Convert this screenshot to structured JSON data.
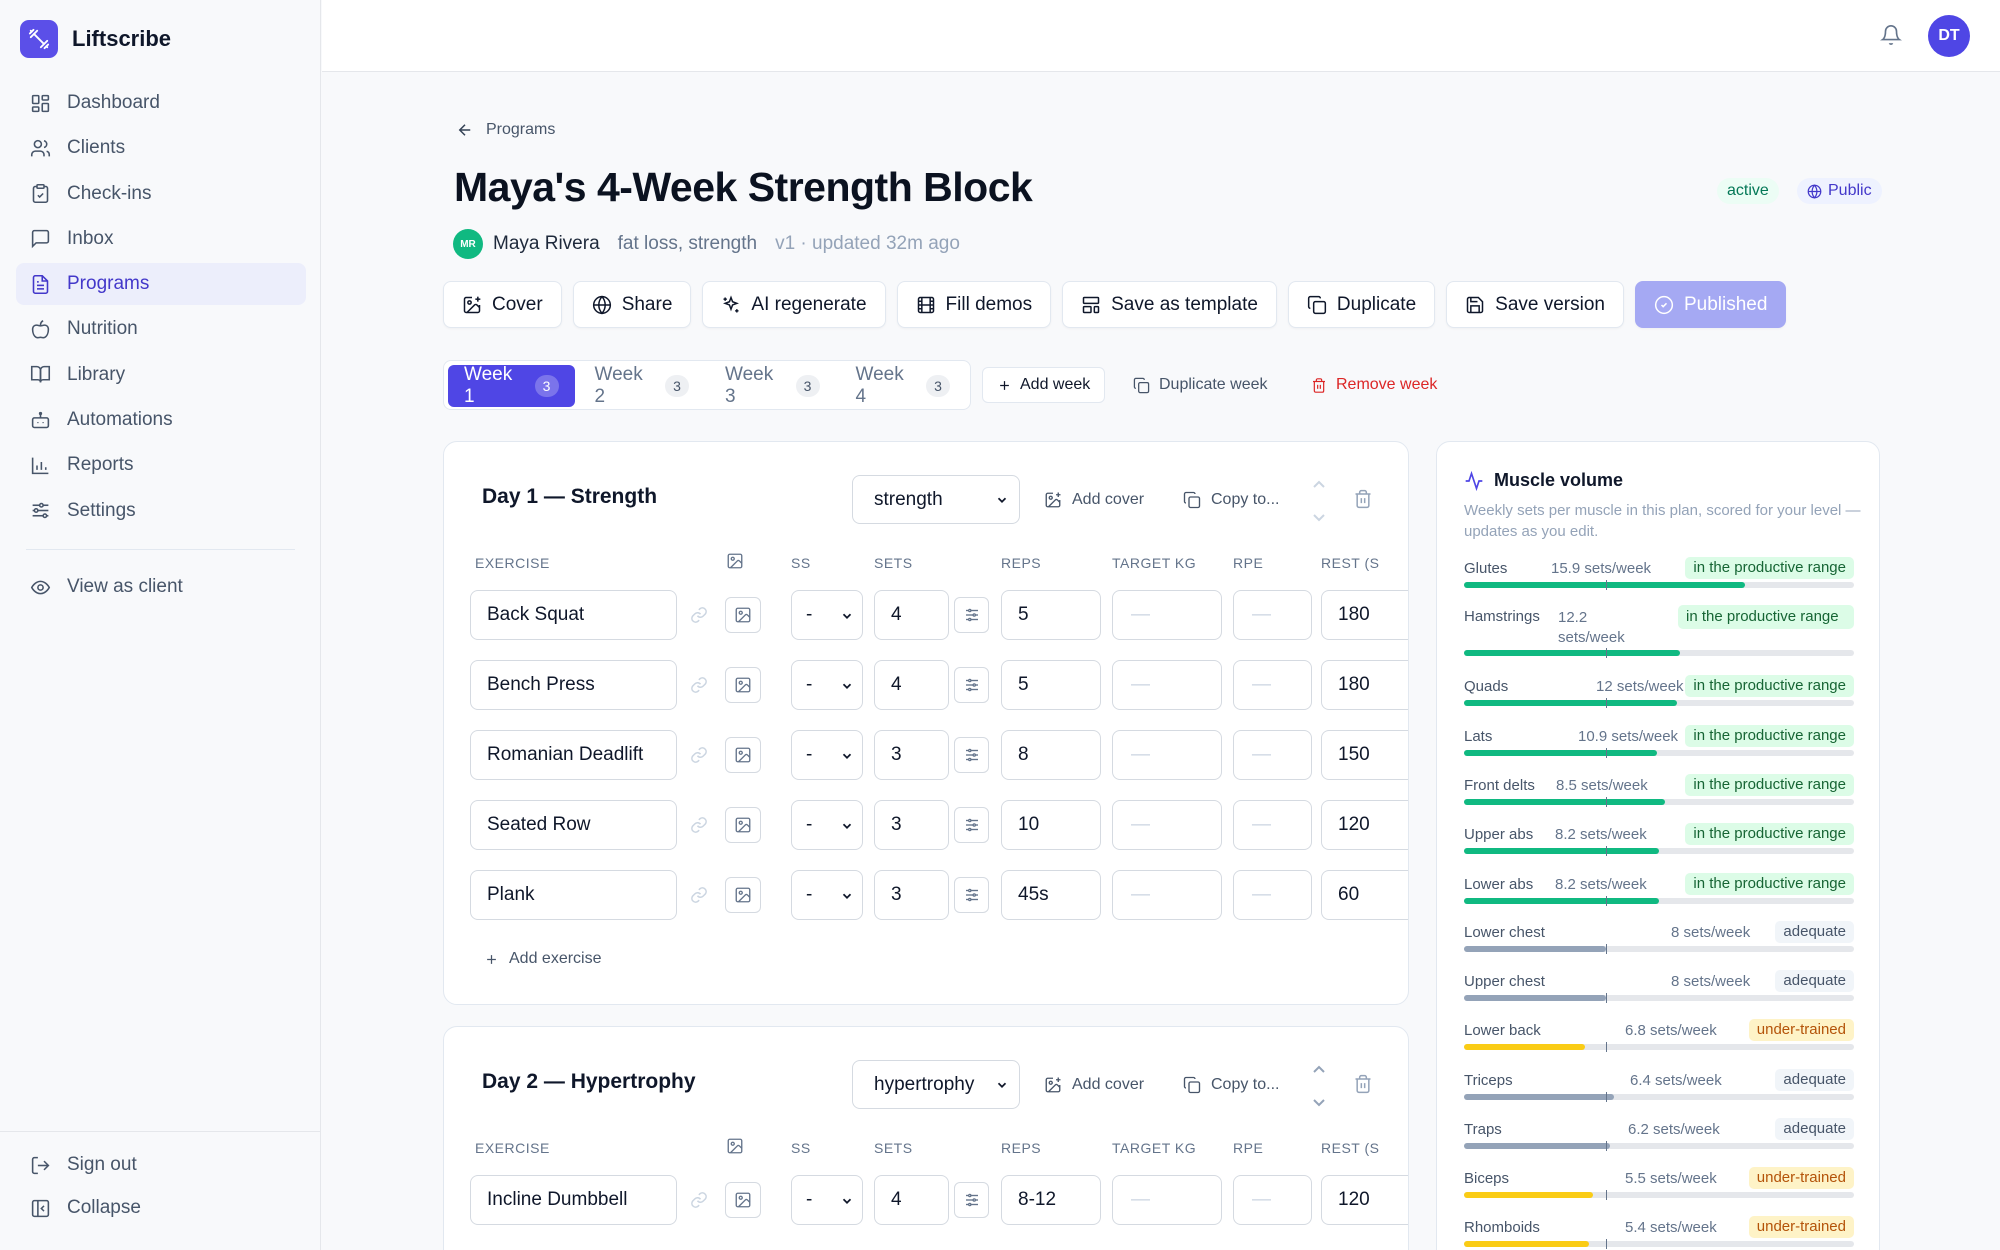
{
  "app": {
    "name": "Liftscribe",
    "user_initials": "DT"
  },
  "sidebar": {
    "items": [
      {
        "label": "Dashboard",
        "icon": "grid-icon"
      },
      {
        "label": "Clients",
        "icon": "users-icon"
      },
      {
        "label": "Check-ins",
        "icon": "clipboard-check-icon"
      },
      {
        "label": "Inbox",
        "icon": "message-icon"
      },
      {
        "label": "Programs",
        "icon": "file-text-icon",
        "active": true
      },
      {
        "label": "Nutrition",
        "icon": "apple-icon"
      },
      {
        "label": "Library",
        "icon": "book-icon"
      },
      {
        "label": "Automations",
        "icon": "bot-icon"
      },
      {
        "label": "Reports",
        "icon": "bar-chart-icon"
      },
      {
        "label": "Settings",
        "icon": "sliders-icon"
      }
    ],
    "view_as_client": "View as client",
    "sign_out": "Sign out",
    "collapse": "Collapse"
  },
  "breadcrumb": "Programs",
  "program": {
    "title": "Maya's 4-Week Strength Block",
    "owner_initials": "MR",
    "owner": "Maya Rivera",
    "tags": "fat loss, strength",
    "version": "v1 · updated 32m ago",
    "status": "active",
    "visibility": "Public"
  },
  "toolbar": {
    "cover": "Cover",
    "share": "Share",
    "ai_regenerate": "AI regenerate",
    "fill_demos": "Fill demos",
    "save_template": "Save as template",
    "duplicate": "Duplicate",
    "save_version": "Save version",
    "published": "Published"
  },
  "weeks": {
    "tabs": [
      {
        "label": "Week 1",
        "count": "3"
      },
      {
        "label": "Week 2",
        "count": "3"
      },
      {
        "label": "Week 3",
        "count": "3"
      },
      {
        "label": "Week 4",
        "count": "3"
      }
    ],
    "add_week": "Add week",
    "duplicate_week": "Duplicate week",
    "remove_week": "Remove week"
  },
  "table_headers": {
    "exercise": "EXERCISE",
    "ss": "SS",
    "sets": "SETS",
    "reps": "REPS",
    "target": "TARGET KG",
    "rpe": "RPE",
    "rest": "REST (S"
  },
  "days": [
    {
      "title": "Day 1 — Strength",
      "type": "strength",
      "add_cover": "Add cover",
      "copy_to": "Copy to...",
      "add_exercise": "Add exercise",
      "exercises": [
        {
          "name": "Back Squat",
          "ss": "-",
          "sets": "4",
          "reps": "5",
          "target": "—",
          "rpe": "—",
          "rest": "180"
        },
        {
          "name": "Bench Press",
          "ss": "-",
          "sets": "4",
          "reps": "5",
          "target": "—",
          "rpe": "—",
          "rest": "180"
        },
        {
          "name": "Romanian Deadlift",
          "ss": "-",
          "sets": "3",
          "reps": "8",
          "target": "—",
          "rpe": "—",
          "rest": "150"
        },
        {
          "name": "Seated Row",
          "ss": "-",
          "sets": "3",
          "reps": "10",
          "target": "—",
          "rpe": "—",
          "rest": "120"
        },
        {
          "name": "Plank",
          "ss": "-",
          "sets": "3",
          "reps": "45s",
          "target": "—",
          "rpe": "—",
          "rest": "60"
        }
      ]
    },
    {
      "title": "Day 2 — Hypertrophy",
      "type": "hypertrophy",
      "add_cover": "Add cover",
      "copy_to": "Copy to...",
      "exercises": [
        {
          "name": "Incline Dumbbell",
          "ss": "-",
          "sets": "4",
          "reps": "8-12",
          "target": "—",
          "rpe": "—",
          "rest": "120"
        }
      ]
    }
  ],
  "muscle_volume": {
    "title": "Muscle volume",
    "subtitle": "Weekly sets per muscle in this plan, scored for your level — updates as you edit.",
    "colors": {
      "good": "#10b981",
      "ok": "#94a3b8",
      "low": "#facc15"
    },
    "rows": [
      {
        "name": "Glutes",
        "value": "15.9 sets/week",
        "status": "in the productive range",
        "level": "good",
        "fill": 0.72
      },
      {
        "name": "Hamstrings",
        "value": "12.2 sets/week",
        "status": "in the productive range",
        "level": "good",
        "fill": 0.555
      },
      {
        "name": "Quads",
        "value": "12 sets/week",
        "status": "in the productive range",
        "level": "good",
        "fill": 0.545
      },
      {
        "name": "Lats",
        "value": "10.9 sets/week",
        "status": "in the productive range",
        "level": "good",
        "fill": 0.495
      },
      {
        "name": "Front delts",
        "value": "8.5 sets/week",
        "status": "in the productive range",
        "level": "good",
        "fill": 0.515
      },
      {
        "name": "Upper abs",
        "value": "8.2 sets/week",
        "status": "in the productive range",
        "level": "good",
        "fill": 0.5
      },
      {
        "name": "Lower abs",
        "value": "8.2 sets/week",
        "status": "in the productive range",
        "level": "good",
        "fill": 0.5
      },
      {
        "name": "Lower chest",
        "value": "8 sets/week",
        "status": "adequate",
        "level": "ok",
        "fill": 0.365
      },
      {
        "name": "Upper chest",
        "value": "8 sets/week",
        "status": "adequate",
        "level": "ok",
        "fill": 0.365
      },
      {
        "name": "Lower back",
        "value": "6.8 sets/week",
        "status": "under-trained",
        "level": "low",
        "fill": 0.31
      },
      {
        "name": "Triceps",
        "value": "6.4 sets/week",
        "status": "adequate",
        "level": "ok",
        "fill": 0.385
      },
      {
        "name": "Traps",
        "value": "6.2 sets/week",
        "status": "adequate",
        "level": "ok",
        "fill": 0.375
      },
      {
        "name": "Biceps",
        "value": "5.5 sets/week",
        "status": "under-trained",
        "level": "low",
        "fill": 0.33
      },
      {
        "name": "Rhomboids",
        "value": "5.4 sets/week",
        "status": "under-trained",
        "level": "low",
        "fill": 0.32
      }
    ]
  }
}
